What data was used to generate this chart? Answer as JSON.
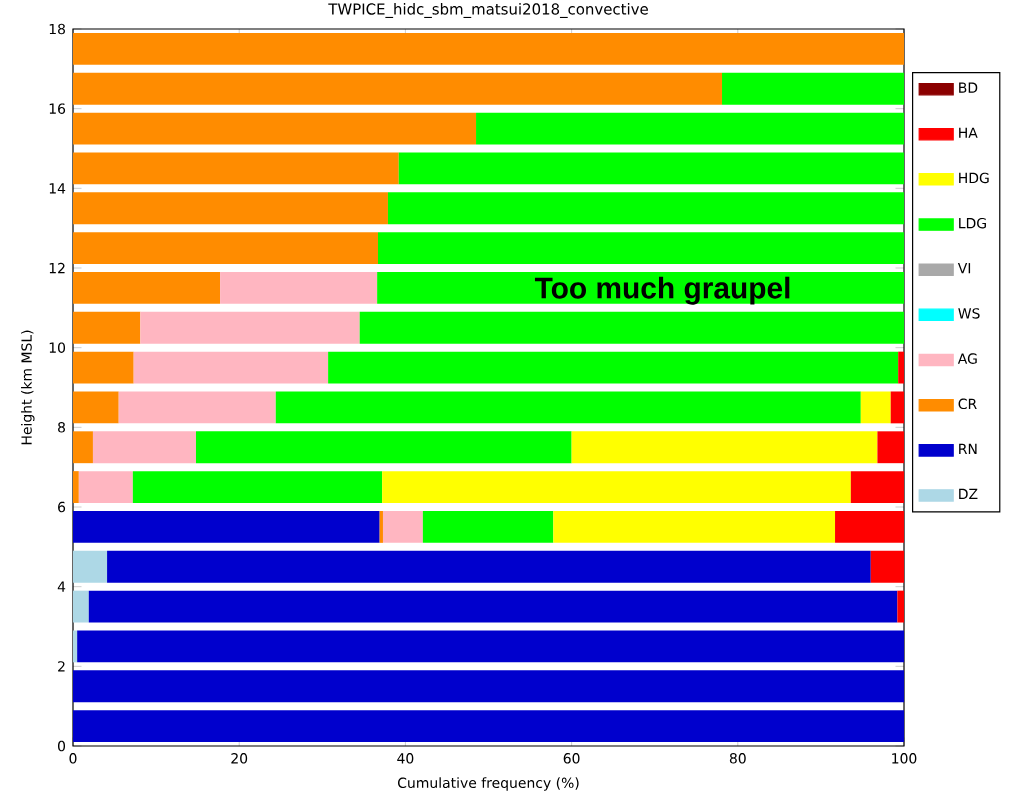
{
  "chart_data": {
    "type": "bar",
    "orientation": "horizontal",
    "stacked": true,
    "title": "TWPICE_hidc_sbm_matsui2018_convective",
    "xlabel": "Cumulative frequency (%)",
    "ylabel": "Height (km MSL)",
    "x": [
      0.5,
      1.5,
      2.5,
      3.5,
      4.5,
      5.5,
      6.5,
      7.5,
      8.5,
      9.5,
      10.5,
      11.5,
      12.5,
      13.5,
      14.5,
      15.5,
      16.5,
      17.5
    ],
    "xlim": [
      0,
      100
    ],
    "xticks": [
      0,
      20,
      40,
      60,
      80,
      100
    ],
    "ylim": [
      0,
      18
    ],
    "yticks": [
      0,
      2,
      4,
      6,
      8,
      10,
      12,
      14,
      16,
      18
    ],
    "legend": "right",
    "annotations": [
      "Too much graupel"
    ],
    "series": [
      {
        "name": "DZ",
        "color": "#add8e6",
        "values": [
          null,
          null,
          0.5,
          1.9,
          4.1,
          null,
          null,
          null,
          null,
          null,
          null,
          null,
          null,
          null,
          null,
          null,
          null,
          null
        ]
      },
      {
        "name": "RN",
        "color": "#0000cd",
        "values": [
          100,
          100,
          99.5,
          97.3,
          91.9,
          36.9,
          null,
          null,
          null,
          null,
          null,
          null,
          null,
          null,
          null,
          null,
          null,
          null
        ]
      },
      {
        "name": "CR",
        "color": "#ff8c00",
        "values": [
          null,
          null,
          null,
          null,
          null,
          0.4,
          0.7,
          2.4,
          5.5,
          7.3,
          8.1,
          17.7,
          36.7,
          37.9,
          39.2,
          48.5,
          78.1,
          100
        ]
      },
      {
        "name": "AG",
        "color": "#ffb6c1",
        "values": [
          null,
          null,
          null,
          null,
          null,
          4.8,
          6.5,
          12.4,
          18.9,
          23.4,
          26.4,
          18.9,
          null,
          null,
          null,
          null,
          null,
          null
        ]
      },
      {
        "name": "WS",
        "color": "#00ffff",
        "values": [
          null,
          null,
          null,
          null,
          null,
          null,
          null,
          null,
          null,
          null,
          null,
          null,
          null,
          null,
          null,
          null,
          null,
          null
        ]
      },
      {
        "name": "VI",
        "color": "#a9a9a9",
        "values": [
          null,
          null,
          null,
          null,
          null,
          null,
          null,
          null,
          null,
          null,
          null,
          null,
          null,
          null,
          null,
          null,
          null,
          null
        ]
      },
      {
        "name": "LDG",
        "color": "#00ff00",
        "values": [
          null,
          null,
          null,
          null,
          null,
          15.7,
          30.0,
          45.2,
          70.4,
          68.6,
          65.5,
          63.4,
          63.3,
          62.1,
          60.8,
          51.5,
          21.9,
          null
        ]
      },
      {
        "name": "HDG",
        "color": "#ffff00",
        "values": [
          null,
          null,
          null,
          null,
          null,
          33.9,
          56.4,
          36.8,
          3.6,
          null,
          null,
          null,
          null,
          null,
          null,
          null,
          null,
          null
        ]
      },
      {
        "name": "HA",
        "color": "#ff0000",
        "values": [
          null,
          null,
          null,
          0.8,
          4.0,
          8.3,
          6.4,
          3.2,
          1.6,
          0.7,
          null,
          null,
          null,
          null,
          null,
          null,
          null,
          null
        ]
      },
      {
        "name": "BD",
        "color": "#8b0000",
        "values": [
          null,
          null,
          null,
          null,
          null,
          null,
          null,
          null,
          null,
          null,
          null,
          null,
          null,
          null,
          null,
          null,
          null,
          null
        ]
      }
    ]
  }
}
